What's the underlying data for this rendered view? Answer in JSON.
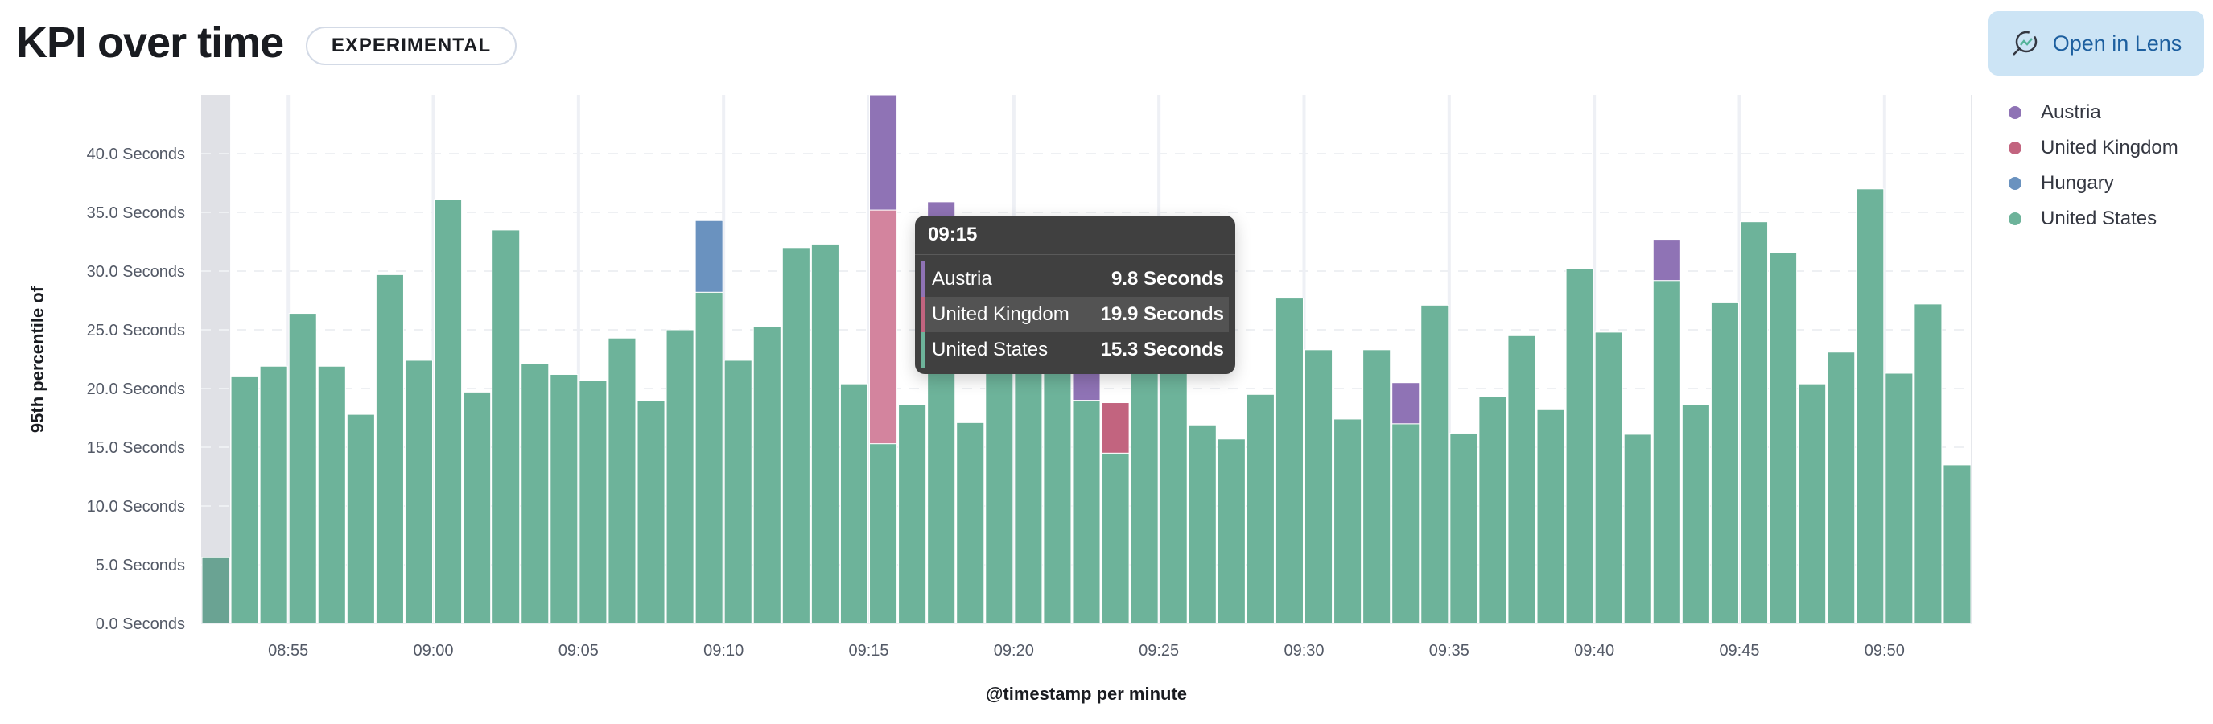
{
  "header": {
    "title": "KPI over time",
    "badge": "EXPERIMENTAL",
    "open_in_lens_label": "Open in Lens",
    "open_in_lens_icon": "lens-icon"
  },
  "tooltip": {
    "title": "09:15",
    "rows": [
      {
        "label": "Austria",
        "value": "9.8 Seconds",
        "color": "#8f73b5"
      },
      {
        "label": "United Kingdom",
        "value": "19.9 Seconds",
        "color": "#c2647f"
      },
      {
        "label": "United States",
        "value": "15.3 Seconds",
        "color": "#6db39a"
      }
    ]
  },
  "chart_data": {
    "type": "bar",
    "stacked": true,
    "xlabel": "@timestamp per minute",
    "ylabel": "95th percentile of",
    "ylim": [
      0,
      45
    ],
    "yticks": [
      "0.0 Seconds",
      "5.0 Seconds",
      "10.0 Seconds",
      "15.0 Seconds",
      "20.0 Seconds",
      "25.0 Seconds",
      "30.0 Seconds",
      "35.0 Seconds",
      "40.0 Seconds"
    ],
    "xticks": [
      "08:55",
      "09:00",
      "09:05",
      "09:10",
      "09:15",
      "09:20",
      "09:25",
      "09:30",
      "09:35",
      "09:40",
      "09:45",
      "09:50"
    ],
    "grid": true,
    "legend_position": "right",
    "highlighted_category": "08:52",
    "categories": [
      "08:52",
      "08:53",
      "08:54",
      "08:55",
      "08:56",
      "08:57",
      "08:58",
      "08:59",
      "09:00",
      "09:01",
      "09:02",
      "09:03",
      "09:04",
      "09:05",
      "09:06",
      "09:07",
      "09:08",
      "09:09",
      "09:10",
      "09:11",
      "09:12",
      "09:13",
      "09:14",
      "09:15",
      "09:16",
      "09:17",
      "09:18",
      "09:19",
      "09:20",
      "09:21",
      "09:22",
      "09:23",
      "09:24",
      "09:25",
      "09:26",
      "09:27",
      "09:28",
      "09:29",
      "09:30",
      "09:31",
      "09:32",
      "09:33",
      "09:34",
      "09:35",
      "09:36",
      "09:37",
      "09:38",
      "09:39",
      "09:40",
      "09:41",
      "09:42",
      "09:43",
      "09:44",
      "09:45",
      "09:46",
      "09:47",
      "09:48",
      "09:49",
      "09:50",
      "09:51",
      "09:52"
    ],
    "series": [
      {
        "name": "United States",
        "color": "#6db39a",
        "values": [
          5.6,
          21.0,
          21.9,
          26.4,
          21.9,
          17.8,
          29.7,
          22.4,
          36.1,
          19.7,
          33.5,
          22.1,
          21.2,
          20.7,
          24.3,
          19.0,
          25.0,
          28.2,
          22.4,
          25.3,
          32.0,
          32.3,
          20.4,
          15.3,
          18.6,
          31.0,
          17.1,
          26.0,
          24.0,
          28.0,
          19.0,
          14.5,
          25.0,
          23.0,
          16.9,
          15.7,
          19.5,
          27.7,
          23.3,
          17.4,
          23.3,
          17.0,
          27.1,
          16.2,
          19.3,
          24.5,
          18.2,
          30.2,
          24.8,
          16.1,
          29.2,
          18.6,
          27.3,
          34.2,
          31.6,
          20.4,
          23.1,
          37.0,
          21.3,
          27.2,
          13.5
        ]
      },
      {
        "name": "Hungary",
        "color": "#6a92bf",
        "values": {
          "09:09": 6.1
        }
      },
      {
        "name": "United Kingdom",
        "color": "#c2647f",
        "values": {
          "09:15": 19.9,
          "09:23": 4.3
        }
      },
      {
        "name": "Austria",
        "color": "#8f73b5",
        "values": {
          "09:15": 9.8,
          "09:17": 4.9,
          "09:22": 3.5,
          "09:33": 3.5,
          "09:42": 3.5
        }
      }
    ],
    "legend": [
      "Austria",
      "United Kingdom",
      "Hungary",
      "United States"
    ]
  }
}
